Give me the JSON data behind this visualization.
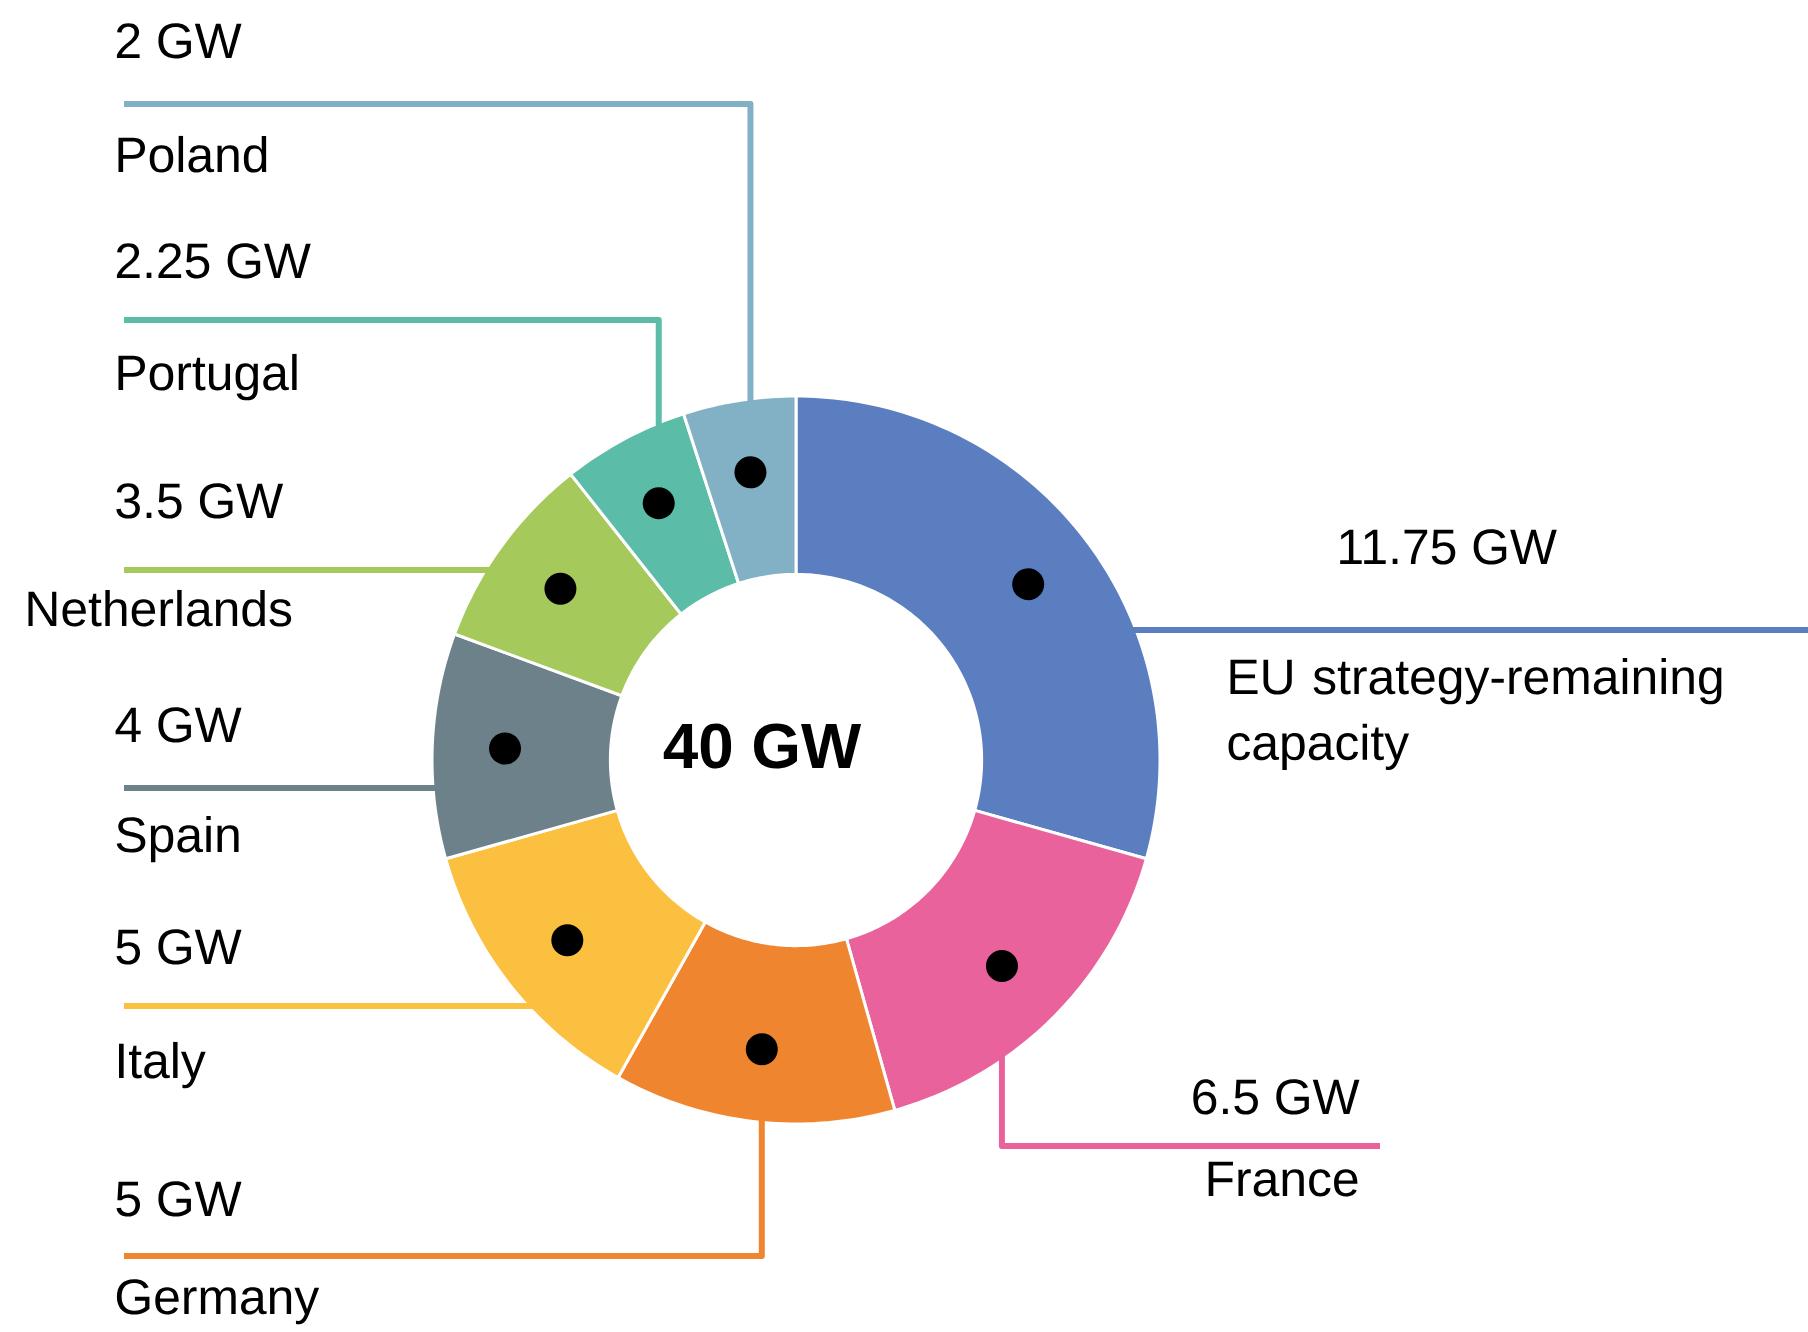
{
  "chart_data": {
    "type": "donut",
    "categories": [
      "EU strategy-remaining capacity",
      "France",
      "Germany",
      "Italy",
      "Spain",
      "Netherlands",
      "Portugal",
      "Poland"
    ],
    "values": [
      11.75,
      6.5,
      5,
      5,
      4,
      3.5,
      2.25,
      2
    ],
    "colors": [
      "#5a7ec0",
      "#ea629c",
      "#f0852f",
      "#fcc041",
      "#6c8189",
      "#a6c95c",
      "#5bbca8",
      "#82b0c5"
    ],
    "value_labels": [
      "11.75 GW",
      "6.5 GW",
      "5 GW",
      "5 GW",
      "4 GW",
      "3.5 GW",
      "2.25 GW",
      "2 GW"
    ],
    "annotations": [
      "40 GW"
    ]
  }
}
